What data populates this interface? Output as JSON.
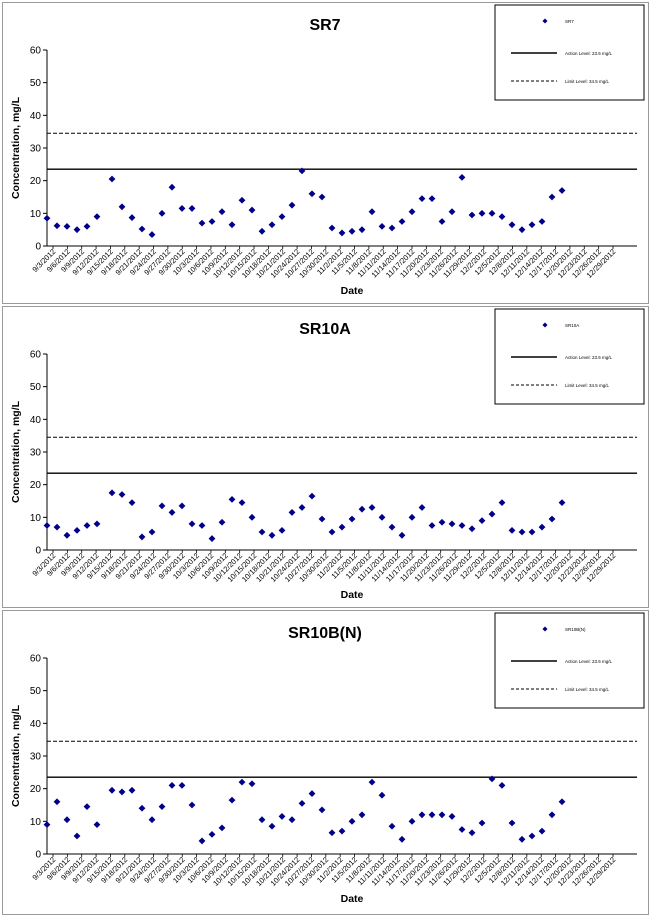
{
  "chart_data": [
    {
      "type": "scatter",
      "title": "SR7",
      "xlabel": "Date",
      "ylabel": "Concentration, mg/L",
      "ylim": [
        0,
        60
      ],
      "yticks": [
        "0",
        "10",
        "20",
        "30",
        "40",
        "50",
        "60"
      ],
      "x_tick_labels": [
        "9/3/2012",
        "9/6/2012",
        "9/9/2012",
        "9/12/2012",
        "9/15/2012",
        "9/18/2012",
        "9/21/2012",
        "9/24/2012",
        "9/27/2012",
        "9/30/2012",
        "10/3/2012",
        "10/6/2012",
        "10/9/2012",
        "10/12/2012",
        "10/15/2012",
        "10/18/2012",
        "10/21/2012",
        "10/24/2012",
        "10/27/2012",
        "10/30/2012",
        "11/2/2012",
        "11/5/2012",
        "11/8/2012",
        "11/11/2012",
        "11/14/2012",
        "11/17/2012",
        "11/20/2012",
        "11/23/2012",
        "11/26/2012",
        "11/29/2012",
        "12/2/2012",
        "12/5/2012",
        "12/8/2012",
        "12/11/2012",
        "12/14/2012",
        "12/17/2012",
        "12/20/2012",
        "12/23/2012",
        "12/26/2012",
        "12/29/2012"
      ],
      "legend_position": "top-right",
      "legend": [
        {
          "label": "SR7",
          "style": "marker"
        },
        {
          "label": "Action Level: 23.5 mg/L",
          "style": "solid"
        },
        {
          "label": "Limit Level: 34.5 mg/L",
          "style": "dashed"
        }
      ],
      "reference_lines": [
        {
          "value": 23.5,
          "style": "solid"
        },
        {
          "value": 34.5,
          "style": "dashed"
        }
      ],
      "series": [
        {
          "name": "SR7",
          "color": "#00008b",
          "points": [
            [
              "2012-09-03",
              8.5
            ],
            [
              "2012-09-05",
              6.2
            ],
            [
              "2012-09-07",
              6.0
            ],
            [
              "2012-09-09",
              5.0
            ],
            [
              "2012-09-11",
              6.0
            ],
            [
              "2012-09-13",
              9.0
            ],
            [
              "2012-09-16",
              20.5
            ],
            [
              "2012-09-18",
              12.0
            ],
            [
              "2012-09-20",
              8.7
            ],
            [
              "2012-09-22",
              5.2
            ],
            [
              "2012-09-24",
              3.5
            ],
            [
              "2012-09-26",
              10.0
            ],
            [
              "2012-09-28",
              18.0
            ],
            [
              "2012-09-30",
              11.5
            ],
            [
              "2012-10-02",
              11.5
            ],
            [
              "2012-10-04",
              7.0
            ],
            [
              "2012-10-06",
              7.5
            ],
            [
              "2012-10-08",
              10.5
            ],
            [
              "2012-10-10",
              6.5
            ],
            [
              "2012-10-12",
              14.0
            ],
            [
              "2012-10-14",
              11.0
            ],
            [
              "2012-10-16",
              4.5
            ],
            [
              "2012-10-18",
              6.5
            ],
            [
              "2012-10-20",
              9.0
            ],
            [
              "2012-10-22",
              12.5
            ],
            [
              "2012-10-24",
              23.0
            ],
            [
              "2012-10-26",
              16.0
            ],
            [
              "2012-10-28",
              15.0
            ],
            [
              "2012-10-30",
              5.5
            ],
            [
              "2012-11-01",
              4.0
            ],
            [
              "2012-11-03",
              4.5
            ],
            [
              "2012-11-05",
              5.0
            ],
            [
              "2012-11-07",
              10.5
            ],
            [
              "2012-11-09",
              6.0
            ],
            [
              "2012-11-11",
              5.5
            ],
            [
              "2012-11-13",
              7.5
            ],
            [
              "2012-11-15",
              10.5
            ],
            [
              "2012-11-17",
              14.5
            ],
            [
              "2012-11-19",
              14.5
            ],
            [
              "2012-11-21",
              7.5
            ],
            [
              "2012-11-23",
              10.5
            ],
            [
              "2012-11-25",
              21.0
            ],
            [
              "2012-11-27",
              9.5
            ],
            [
              "2012-11-29",
              10.0
            ],
            [
              "2012-12-01",
              10.0
            ],
            [
              "2012-12-03",
              9.0
            ],
            [
              "2012-12-05",
              6.5
            ],
            [
              "2012-12-07",
              5.0
            ],
            [
              "2012-12-09",
              6.5
            ],
            [
              "2012-12-11",
              7.5
            ],
            [
              "2012-12-13",
              15.0
            ],
            [
              "2012-12-15",
              17.0
            ]
          ]
        }
      ]
    },
    {
      "type": "scatter",
      "title": "SR10A",
      "xlabel": "Date",
      "ylabel": "Concentration, mg/L",
      "ylim": [
        0,
        60
      ],
      "yticks": [
        "0",
        "10",
        "20",
        "30",
        "40",
        "50",
        "60"
      ],
      "x_tick_labels": [
        "9/3/2012",
        "9/6/2012",
        "9/9/2012",
        "9/12/2012",
        "9/15/2012",
        "9/18/2012",
        "9/21/2012",
        "9/24/2012",
        "9/27/2012",
        "9/30/2012",
        "10/3/2012",
        "10/6/2012",
        "10/9/2012",
        "10/12/2012",
        "10/15/2012",
        "10/18/2012",
        "10/21/2012",
        "10/24/2012",
        "10/27/2012",
        "10/30/2012",
        "11/2/2012",
        "11/5/2012",
        "11/8/2012",
        "11/11/2012",
        "11/14/2012",
        "11/17/2012",
        "11/20/2012",
        "11/23/2012",
        "11/26/2012",
        "11/29/2012",
        "12/2/2012",
        "12/5/2012",
        "12/8/2012",
        "12/11/2012",
        "12/14/2012",
        "12/17/2012",
        "12/20/2012",
        "12/23/2012",
        "12/26/2012",
        "12/29/2012"
      ],
      "legend_position": "top-right",
      "legend": [
        {
          "label": "SR10A",
          "style": "marker"
        },
        {
          "label": "Action Level: 23.5 mg/L",
          "style": "solid"
        },
        {
          "label": "Limit Level: 34.5 mg/L",
          "style": "dashed"
        }
      ],
      "reference_lines": [
        {
          "value": 23.5,
          "style": "solid"
        },
        {
          "value": 34.5,
          "style": "dashed"
        }
      ],
      "series": [
        {
          "name": "SR10A",
          "color": "#00008b",
          "points": [
            [
              "2012-09-03",
              7.5
            ],
            [
              "2012-09-05",
              7.0
            ],
            [
              "2012-09-07",
              4.5
            ],
            [
              "2012-09-09",
              6.0
            ],
            [
              "2012-09-11",
              7.5
            ],
            [
              "2012-09-13",
              8.0
            ],
            [
              "2012-09-16",
              17.5
            ],
            [
              "2012-09-18",
              17.0
            ],
            [
              "2012-09-20",
              14.5
            ],
            [
              "2012-09-22",
              4.0
            ],
            [
              "2012-09-24",
              5.5
            ],
            [
              "2012-09-26",
              13.5
            ],
            [
              "2012-09-28",
              11.5
            ],
            [
              "2012-09-30",
              13.5
            ],
            [
              "2012-10-02",
              8.0
            ],
            [
              "2012-10-04",
              7.5
            ],
            [
              "2012-10-06",
              3.5
            ],
            [
              "2012-10-08",
              8.5
            ],
            [
              "2012-10-10",
              15.5
            ],
            [
              "2012-10-12",
              14.5
            ],
            [
              "2012-10-14",
              10.0
            ],
            [
              "2012-10-16",
              5.5
            ],
            [
              "2012-10-18",
              4.5
            ],
            [
              "2012-10-20",
              6.0
            ],
            [
              "2012-10-22",
              11.5
            ],
            [
              "2012-10-24",
              13.0
            ],
            [
              "2012-10-26",
              16.5
            ],
            [
              "2012-10-28",
              9.5
            ],
            [
              "2012-10-30",
              5.5
            ],
            [
              "2012-11-01",
              7.0
            ],
            [
              "2012-11-03",
              9.5
            ],
            [
              "2012-11-05",
              12.5
            ],
            [
              "2012-11-07",
              13.0
            ],
            [
              "2012-11-09",
              10.0
            ],
            [
              "2012-11-11",
              7.0
            ],
            [
              "2012-11-13",
              4.5
            ],
            [
              "2012-11-15",
              10.0
            ],
            [
              "2012-11-17",
              13.0
            ],
            [
              "2012-11-19",
              7.5
            ],
            [
              "2012-11-21",
              8.5
            ],
            [
              "2012-11-23",
              8.0
            ],
            [
              "2012-11-25",
              7.5
            ],
            [
              "2012-11-27",
              6.5
            ],
            [
              "2012-11-29",
              9.0
            ],
            [
              "2012-12-01",
              11.0
            ],
            [
              "2012-12-03",
              14.5
            ],
            [
              "2012-12-05",
              6.0
            ],
            [
              "2012-12-07",
              5.5
            ],
            [
              "2012-12-09",
              5.5
            ],
            [
              "2012-12-11",
              7.0
            ],
            [
              "2012-12-13",
              9.5
            ],
            [
              "2012-12-15",
              14.5
            ]
          ]
        }
      ]
    },
    {
      "type": "scatter",
      "title": "SR10B(N)",
      "xlabel": "Date",
      "ylabel": "Concentration, mg/L",
      "ylim": [
        0,
        60
      ],
      "yticks": [
        "0",
        "10",
        "20",
        "30",
        "40",
        "50",
        "60"
      ],
      "x_tick_labels": [
        "9/3/2012",
        "9/6/2012",
        "9/9/2012",
        "9/12/2012",
        "9/15/2012",
        "9/18/2012",
        "9/21/2012",
        "9/24/2012",
        "9/27/2012",
        "9/30/2012",
        "10/3/2012",
        "10/6/2012",
        "10/9/2012",
        "10/12/2012",
        "10/15/2012",
        "10/18/2012",
        "10/21/2012",
        "10/24/2012",
        "10/27/2012",
        "10/30/2012",
        "11/2/2012",
        "11/5/2012",
        "11/8/2012",
        "11/11/2012",
        "11/14/2012",
        "11/17/2012",
        "11/20/2012",
        "11/23/2012",
        "11/26/2012",
        "11/29/2012",
        "12/2/2012",
        "12/5/2012",
        "12/8/2012",
        "12/11/2012",
        "12/14/2012",
        "12/17/2012",
        "12/20/2012",
        "12/23/2012",
        "12/26/2012",
        "12/29/2012"
      ],
      "legend_position": "top-right",
      "legend": [
        {
          "label": "SR10B(N)",
          "style": "marker"
        },
        {
          "label": "Action Level: 23.5 mg/L",
          "style": "solid"
        },
        {
          "label": "Limit Level: 34.5 mg/L",
          "style": "dashed"
        }
      ],
      "reference_lines": [
        {
          "value": 23.5,
          "style": "solid"
        },
        {
          "value": 34.5,
          "style": "dashed"
        }
      ],
      "series": [
        {
          "name": "SR10B(N)",
          "color": "#00008b",
          "points": [
            [
              "2012-09-03",
              9.0
            ],
            [
              "2012-09-05",
              16.0
            ],
            [
              "2012-09-07",
              10.5
            ],
            [
              "2012-09-09",
              5.5
            ],
            [
              "2012-09-11",
              14.5
            ],
            [
              "2012-09-13",
              9.0
            ],
            [
              "2012-09-16",
              19.5
            ],
            [
              "2012-09-18",
              19.0
            ],
            [
              "2012-09-20",
              19.5
            ],
            [
              "2012-09-22",
              14.0
            ],
            [
              "2012-09-24",
              10.5
            ],
            [
              "2012-09-26",
              14.5
            ],
            [
              "2012-09-28",
              21.0
            ],
            [
              "2012-09-30",
              21.0
            ],
            [
              "2012-10-02",
              15.0
            ],
            [
              "2012-10-04",
              4.0
            ],
            [
              "2012-10-06",
              6.0
            ],
            [
              "2012-10-08",
              8.0
            ],
            [
              "2012-10-10",
              16.5
            ],
            [
              "2012-10-12",
              22.0
            ],
            [
              "2012-10-14",
              21.5
            ],
            [
              "2012-10-16",
              10.5
            ],
            [
              "2012-10-18",
              8.5
            ],
            [
              "2012-10-20",
              11.5
            ],
            [
              "2012-10-22",
              10.5
            ],
            [
              "2012-10-24",
              15.5
            ],
            [
              "2012-10-26",
              18.5
            ],
            [
              "2012-10-28",
              13.5
            ],
            [
              "2012-10-30",
              6.5
            ],
            [
              "2012-11-01",
              7.0
            ],
            [
              "2012-11-03",
              10.0
            ],
            [
              "2012-11-05",
              12.0
            ],
            [
              "2012-11-07",
              22.0
            ],
            [
              "2012-11-09",
              18.0
            ],
            [
              "2012-11-11",
              8.5
            ],
            [
              "2012-11-13",
              4.5
            ],
            [
              "2012-11-15",
              10.0
            ],
            [
              "2012-11-17",
              12.0
            ],
            [
              "2012-11-19",
              12.0
            ],
            [
              "2012-11-21",
              12.0
            ],
            [
              "2012-11-23",
              11.5
            ],
            [
              "2012-11-25",
              7.5
            ],
            [
              "2012-11-27",
              6.5
            ],
            [
              "2012-11-29",
              9.5
            ],
            [
              "2012-12-01",
              23.0
            ],
            [
              "2012-12-03",
              21.0
            ],
            [
              "2012-12-05",
              9.5
            ],
            [
              "2012-12-07",
              4.5
            ],
            [
              "2012-12-09",
              5.5
            ],
            [
              "2012-12-11",
              7.0
            ],
            [
              "2012-12-13",
              12.0
            ],
            [
              "2012-12-15",
              16.0
            ]
          ]
        }
      ]
    }
  ]
}
